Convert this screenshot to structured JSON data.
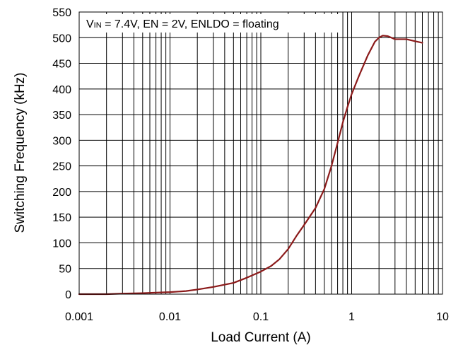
{
  "chart_data": {
    "type": "line",
    "xscale": "log",
    "xlabel": "Load Current (A)",
    "ylabel": "Switching Frequency (kHz)",
    "xlim": [
      0.001,
      10
    ],
    "ylim": [
      0,
      550
    ],
    "grid": true,
    "xticks": [
      "0.001",
      "0.01",
      "0.1",
      "1",
      "10"
    ],
    "yticks": [
      "0",
      "50",
      "100",
      "150",
      "200",
      "250",
      "300",
      "350",
      "400",
      "450",
      "500",
      "550"
    ],
    "annotation": {
      "v_main": "V",
      "v_sub": "IN",
      "rest": " = 7.4V, EN = 2V, ENLDO = floating"
    },
    "colors": {
      "line": "#8B1A1A",
      "grid": "#000000"
    },
    "series": [
      {
        "x": [
          0.001,
          0.002,
          0.003,
          0.005,
          0.007,
          0.01,
          0.015,
          0.02,
          0.03,
          0.05,
          0.07,
          0.1,
          0.13,
          0.16,
          0.2,
          0.25,
          0.3,
          0.4,
          0.5,
          0.6,
          0.7,
          0.8,
          0.9,
          1.0,
          1.2,
          1.5,
          1.8,
          2.0,
          2.2,
          2.5,
          3.0,
          4.0,
          5.0,
          6.0
        ],
        "y": [
          0,
          0,
          1,
          2,
          3,
          4,
          6,
          9,
          14,
          22,
          32,
          44,
          55,
          68,
          88,
          115,
          135,
          168,
          205,
          250,
          295,
          335,
          365,
          390,
          425,
          465,
          492,
          500,
          504,
          503,
          497,
          497,
          493,
          490
        ]
      }
    ]
  }
}
